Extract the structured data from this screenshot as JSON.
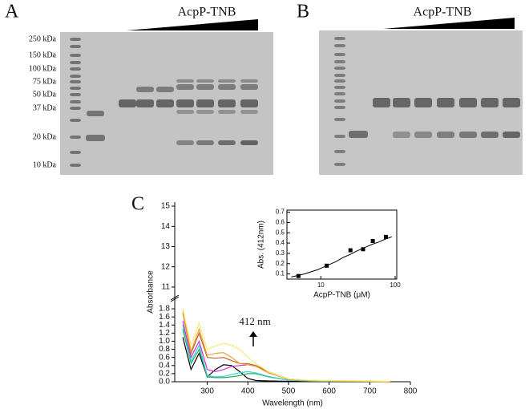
{
  "panels": {
    "a": {
      "label": "A",
      "title": "AcpP-TNB",
      "markers": [
        "250 kDa",
        "150 kDa",
        "100 kDa",
        "75 kDa",
        "50 kDa",
        "37 kDa",
        "20 kDa",
        "10 kDa"
      ]
    },
    "b": {
      "label": "B",
      "title": "AcpP-TNB"
    },
    "c": {
      "label": "C"
    }
  },
  "chart_data": [
    {
      "type": "line",
      "x_label": "Wavelength (nm)",
      "y_label": "Absorbance",
      "annotation": "412 nm",
      "xlim": [
        220,
        800
      ],
      "xticks": [
        300,
        400,
        500,
        600,
        700,
        800
      ],
      "ylim": [
        0,
        1.9
      ],
      "yticks": [
        {
          "value": 0,
          "label": "0.0"
        },
        {
          "value": 0.2,
          "label": "0.2"
        },
        {
          "value": 0.4,
          "label": "0.4"
        },
        {
          "value": 0.6,
          "label": "0.6"
        },
        {
          "value": 0.8,
          "label": "0.8"
        },
        {
          "value": 1,
          "label": "1.0"
        },
        {
          "value": 1.2,
          "label": "1.2"
        },
        {
          "value": 1.4,
          "label": "1.4"
        },
        {
          "value": 1.6,
          "label": "1.6"
        },
        {
          "value": 1.8,
          "label": "1.8"
        }
      ],
      "ylim_upper": [
        10.6,
        15.2
      ],
      "yticks_upper": [
        11,
        12,
        13,
        14,
        15
      ],
      "x": [
        240,
        260,
        280,
        300,
        320,
        340,
        360,
        380,
        400,
        420,
        450,
        500,
        550,
        600,
        700,
        750
      ],
      "series": [
        {
          "color": "#000000",
          "values": [
            1.1,
            0.3,
            0.7,
            0.12,
            0.3,
            0.42,
            0.4,
            0.25,
            0.08,
            0.03,
            0.02,
            0.01,
            0.01,
            0,
            0,
            0
          ]
        },
        {
          "color": "#2fa84f",
          "values": [
            1.3,
            0.45,
            0.8,
            0.12,
            0.1,
            0.1,
            0.12,
            0.15,
            0.2,
            0.2,
            0.12,
            0.04,
            0.02,
            0.01,
            0.01,
            0
          ]
        },
        {
          "color": "#34d2e0",
          "values": [
            1.4,
            0.5,
            0.9,
            0.15,
            0.12,
            0.13,
            0.18,
            0.22,
            0.25,
            0.22,
            0.13,
            0.04,
            0.02,
            0.01,
            0.01,
            0
          ]
        },
        {
          "color": "#d12fc8",
          "values": [
            1.5,
            0.6,
            1.0,
            0.3,
            0.25,
            0.3,
            0.38,
            0.4,
            0.42,
            0.38,
            0.25,
            0.06,
            0.03,
            0.02,
            0.01,
            0
          ]
        },
        {
          "color": "#c0622a",
          "values": [
            1.7,
            0.7,
            1.2,
            0.6,
            0.58,
            0.6,
            0.52,
            0.45,
            0.45,
            0.4,
            0.25,
            0.07,
            0.03,
            0.02,
            0.01,
            0
          ]
        },
        {
          "color": "#f0a030",
          "values": [
            1.75,
            0.75,
            1.3,
            0.65,
            0.7,
            0.72,
            0.6,
            0.45,
            0.42,
            0.38,
            0.22,
            0.06,
            0.03,
            0.02,
            0.01,
            0
          ]
        },
        {
          "color": "#f2ec70",
          "values": [
            1.8,
            0.9,
            1.45,
            0.8,
            0.88,
            0.95,
            0.9,
            0.8,
            0.6,
            0.45,
            0.25,
            0.07,
            0.04,
            0.03,
            0.02,
            0.01
          ]
        }
      ]
    },
    {
      "type": "scatter",
      "x_label": "AcpP-TNB (μM)",
      "y_label": "Abs. (412nm)",
      "log_x": true,
      "xlim": [
        3.5,
        105
      ],
      "xticks": [
        10,
        100
      ],
      "ylim": [
        0.05,
        0.72
      ],
      "yticks": [
        0.1,
        0.2,
        0.3,
        0.4,
        0.5,
        0.6,
        0.7
      ],
      "x": [
        5,
        12,
        25,
        37,
        50,
        75
      ],
      "values": [
        0.08,
        0.18,
        0.33,
        0.34,
        0.42,
        0.46
      ],
      "color": "#000000",
      "fit": {
        "x": [
          4,
          6,
          9,
          12,
          16,
          20,
          25,
          30,
          40,
          50,
          60,
          75,
          90
        ],
        "values": [
          0.07,
          0.1,
          0.14,
          0.18,
          0.22,
          0.26,
          0.29,
          0.32,
          0.36,
          0.39,
          0.41,
          0.44,
          0.46
        ]
      }
    }
  ]
}
